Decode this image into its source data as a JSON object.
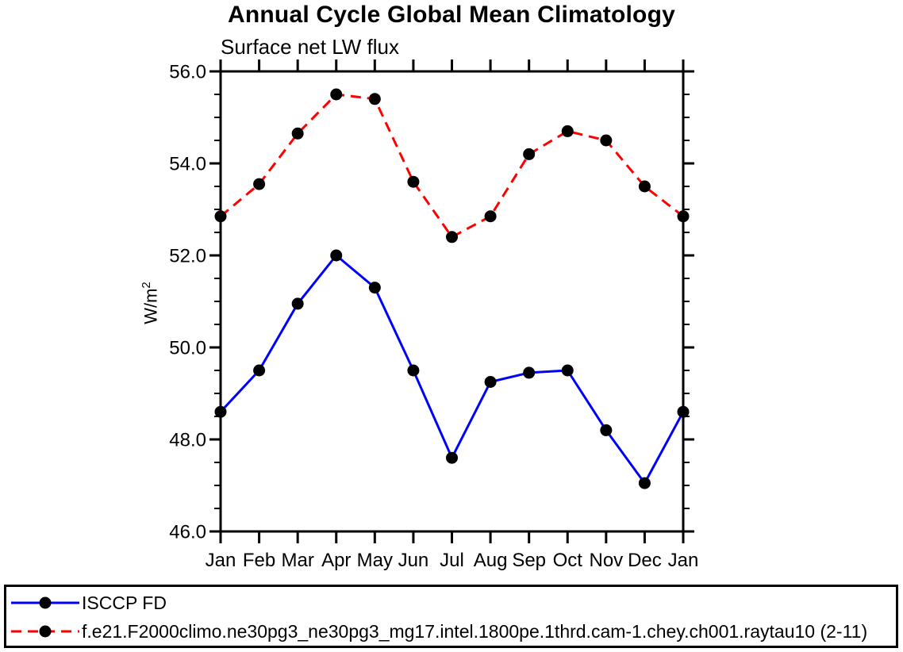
{
  "page": {
    "background_color": "#ffffff",
    "axis_color": "#000000"
  },
  "chart_data": {
    "type": "line",
    "title": "Annual Cycle Global Mean Climatology",
    "subtitle": "Surface net LW flux",
    "ylabel": "W/m²",
    "ylabel_base": "W/m",
    "ylabel_sup": "2",
    "xlabel": "",
    "categories": [
      "Jan",
      "Feb",
      "Mar",
      "Apr",
      "May",
      "Jun",
      "Jul",
      "Aug",
      "Sep",
      "Oct",
      "Nov",
      "Dec",
      "Jan"
    ],
    "ylim": [
      46.0,
      56.0
    ],
    "ytick_major_interval": 2.0,
    "ytick_minor_interval": 0.5,
    "ytick_labels": [
      "46.0",
      "48.0",
      "50.0",
      "52.0",
      "54.0",
      "56.0"
    ],
    "grid": false,
    "legend_position": "bottom",
    "marker": "filled-circle",
    "marker_color": "#000000",
    "series": [
      {
        "name": "ISCCP FD",
        "color": "#0000ff",
        "line_style": "solid",
        "values": [
          48.6,
          49.5,
          50.95,
          52.0,
          51.3,
          49.5,
          47.6,
          49.25,
          49.45,
          49.5,
          48.2,
          47.05,
          48.6
        ]
      },
      {
        "name": "f.e21.F2000climo.ne30pg3_ne30pg3_mg17.intel.1800pe.1thrd.cam-1.chey.ch001.raytau10 (2-11)",
        "color": "#ff0000",
        "line_style": "dashed",
        "values": [
          52.85,
          53.55,
          54.65,
          55.5,
          55.4,
          53.6,
          52.4,
          52.85,
          54.2,
          54.7,
          54.5,
          53.5,
          52.85
        ]
      }
    ]
  }
}
